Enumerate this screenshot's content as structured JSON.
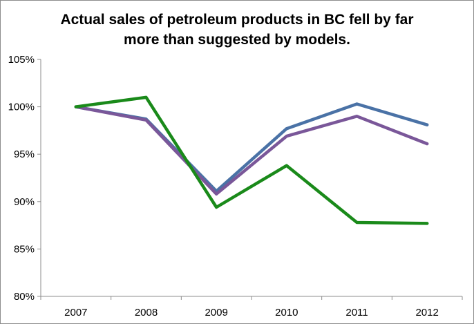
{
  "chart_data": {
    "type": "line",
    "title_lines": [
      "Actual sales of petroleum products in BC fell by far",
      "more than suggested by models."
    ],
    "xlabel": "",
    "ylabel": "",
    "categories": [
      "2007",
      "2008",
      "2009",
      "2010",
      "2011",
      "2012"
    ],
    "ylim": [
      80,
      105
    ],
    "yticks": [
      80,
      85,
      90,
      95,
      100,
      105
    ],
    "ytick_labels": [
      "80%",
      "85%",
      "90%",
      "95%",
      "100%",
      "105%"
    ],
    "grid": false,
    "legend": "none",
    "series": [
      {
        "color": "#4a72a6",
        "values": [
          100,
          98.7,
          91.1,
          97.7,
          100.3,
          98.1
        ]
      },
      {
        "color": "#7a5799",
        "values": [
          100,
          98.6,
          90.8,
          96.9,
          99.0,
          96.1
        ]
      },
      {
        "color": "#1a8a1a",
        "values": [
          100,
          101.0,
          89.4,
          93.8,
          87.8,
          87.7
        ]
      }
    ]
  }
}
